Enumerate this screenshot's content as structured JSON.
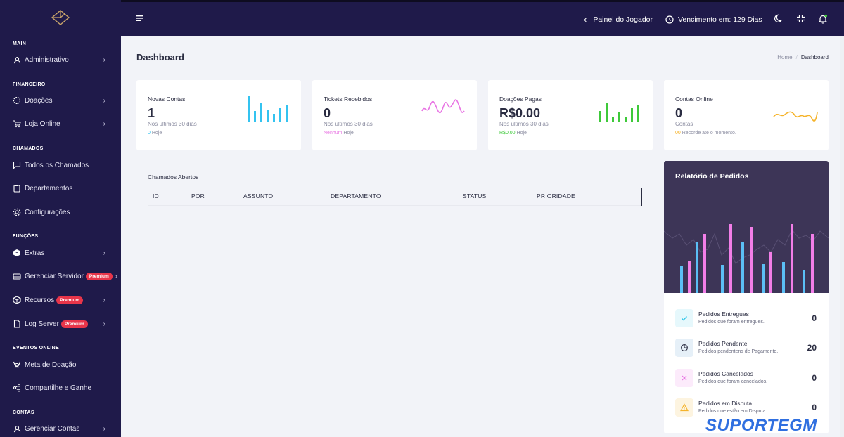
{
  "sidebar": {
    "sections": [
      {
        "label": "MAIN"
      },
      {
        "label": "FINANCEIRO"
      },
      {
        "label": "CHAMADOS"
      },
      {
        "label": "FUNÇÕES"
      },
      {
        "label": "EVENTOS ONLINE"
      },
      {
        "label": "CONTAS"
      }
    ],
    "items": [
      {
        "label": "Administrativo",
        "icon": "user-icon"
      },
      {
        "label": "Doações",
        "icon": "donation-icon"
      },
      {
        "label": "Loja Online",
        "icon": "cart-icon"
      },
      {
        "label": "Todos os Chamados",
        "icon": "chat-icon"
      },
      {
        "label": "Departamentos",
        "icon": "clipboard-icon"
      },
      {
        "label": "Configurações",
        "icon": "gear-icon"
      },
      {
        "label": "Extras",
        "icon": "cube-icon"
      },
      {
        "label": "Gerenciar Servidor",
        "icon": "server-icon",
        "badge": "Premium"
      },
      {
        "label": "Recursos",
        "icon": "box-icon",
        "badge": "Premium"
      },
      {
        "label": "Log Server",
        "icon": "file-icon",
        "badge": "Premium"
      },
      {
        "label": "Meta de Doação",
        "icon": "trophy-icon"
      },
      {
        "label": "Compartilhe e Ganhe",
        "icon": "share-icon"
      },
      {
        "label": "Gerenciar Contas",
        "icon": "user-icon"
      }
    ]
  },
  "topbar": {
    "player_panel": "Painel do Jogador",
    "expiry": "Vencimento em: 129 Dias"
  },
  "page": {
    "title": "Dashboard",
    "breadcrumb_home": "Home",
    "breadcrumb_sep": "/",
    "breadcrumb_current": "Dashboard"
  },
  "cards": [
    {
      "label": "Novas Contas",
      "value": "1",
      "sub": "Nos ultimos 30 dias",
      "foot_value": "0",
      "foot_text": "Hoje",
      "color": "#34c3f0"
    },
    {
      "label": "Tickets Recebidos",
      "value": "0",
      "sub": "Nos ultimos 30 dias",
      "foot_value": "Nenhum",
      "foot_text": "Hoje",
      "color": "#e874e3"
    },
    {
      "label": "Doações Pagas",
      "value": "R$0.00",
      "sub": "Nos ultimos 30 dias",
      "foot_value": "R$0.00",
      "foot_text": "Hoje",
      "color": "#3ec93a"
    },
    {
      "label": "Contas Online",
      "value": "0",
      "sub": "Contas",
      "foot_value": "00",
      "foot_text": "Recorde até o momento.",
      "color": "#f5b32a"
    }
  ],
  "tickets": {
    "title": "Chamados Abertos",
    "columns": [
      "ID",
      "POR",
      "ASSUNTO",
      "DEPARTAMENTO",
      "STATUS",
      "PRIORIDADE"
    ]
  },
  "report": {
    "title": "Relatório de Pedidos",
    "bar_colors": {
      "blue": "#5bbff5",
      "pink": "#f27ee8"
    },
    "rows": [
      {
        "name": "Pedidos Entregues",
        "desc": "Pedidos que foram entregues.",
        "value": "0",
        "icon": "check-icon",
        "color": "#2ec5e8",
        "bg": "#e6f8fc"
      },
      {
        "name": "Pedidos Pendente",
        "desc": "Pedidos pendentens de Pagamento.",
        "value": "20",
        "icon": "pie-icon",
        "color": "#2b2d42",
        "bg": "#e6f0f8"
      },
      {
        "name": "Pedidos Cancelados",
        "desc": "Pedidos que foram cancelados.",
        "value": "0",
        "icon": "x-icon",
        "color": "#e874e3",
        "bg": "#fcebfb"
      },
      {
        "name": "Pedidos em Disputa",
        "desc": "Pedidos que estão em Disputa.",
        "value": "0",
        "icon": "warning-icon",
        "color": "#f5b32a",
        "bg": "#fdf4e0"
      }
    ]
  },
  "watermark": "SUPORTEGM"
}
